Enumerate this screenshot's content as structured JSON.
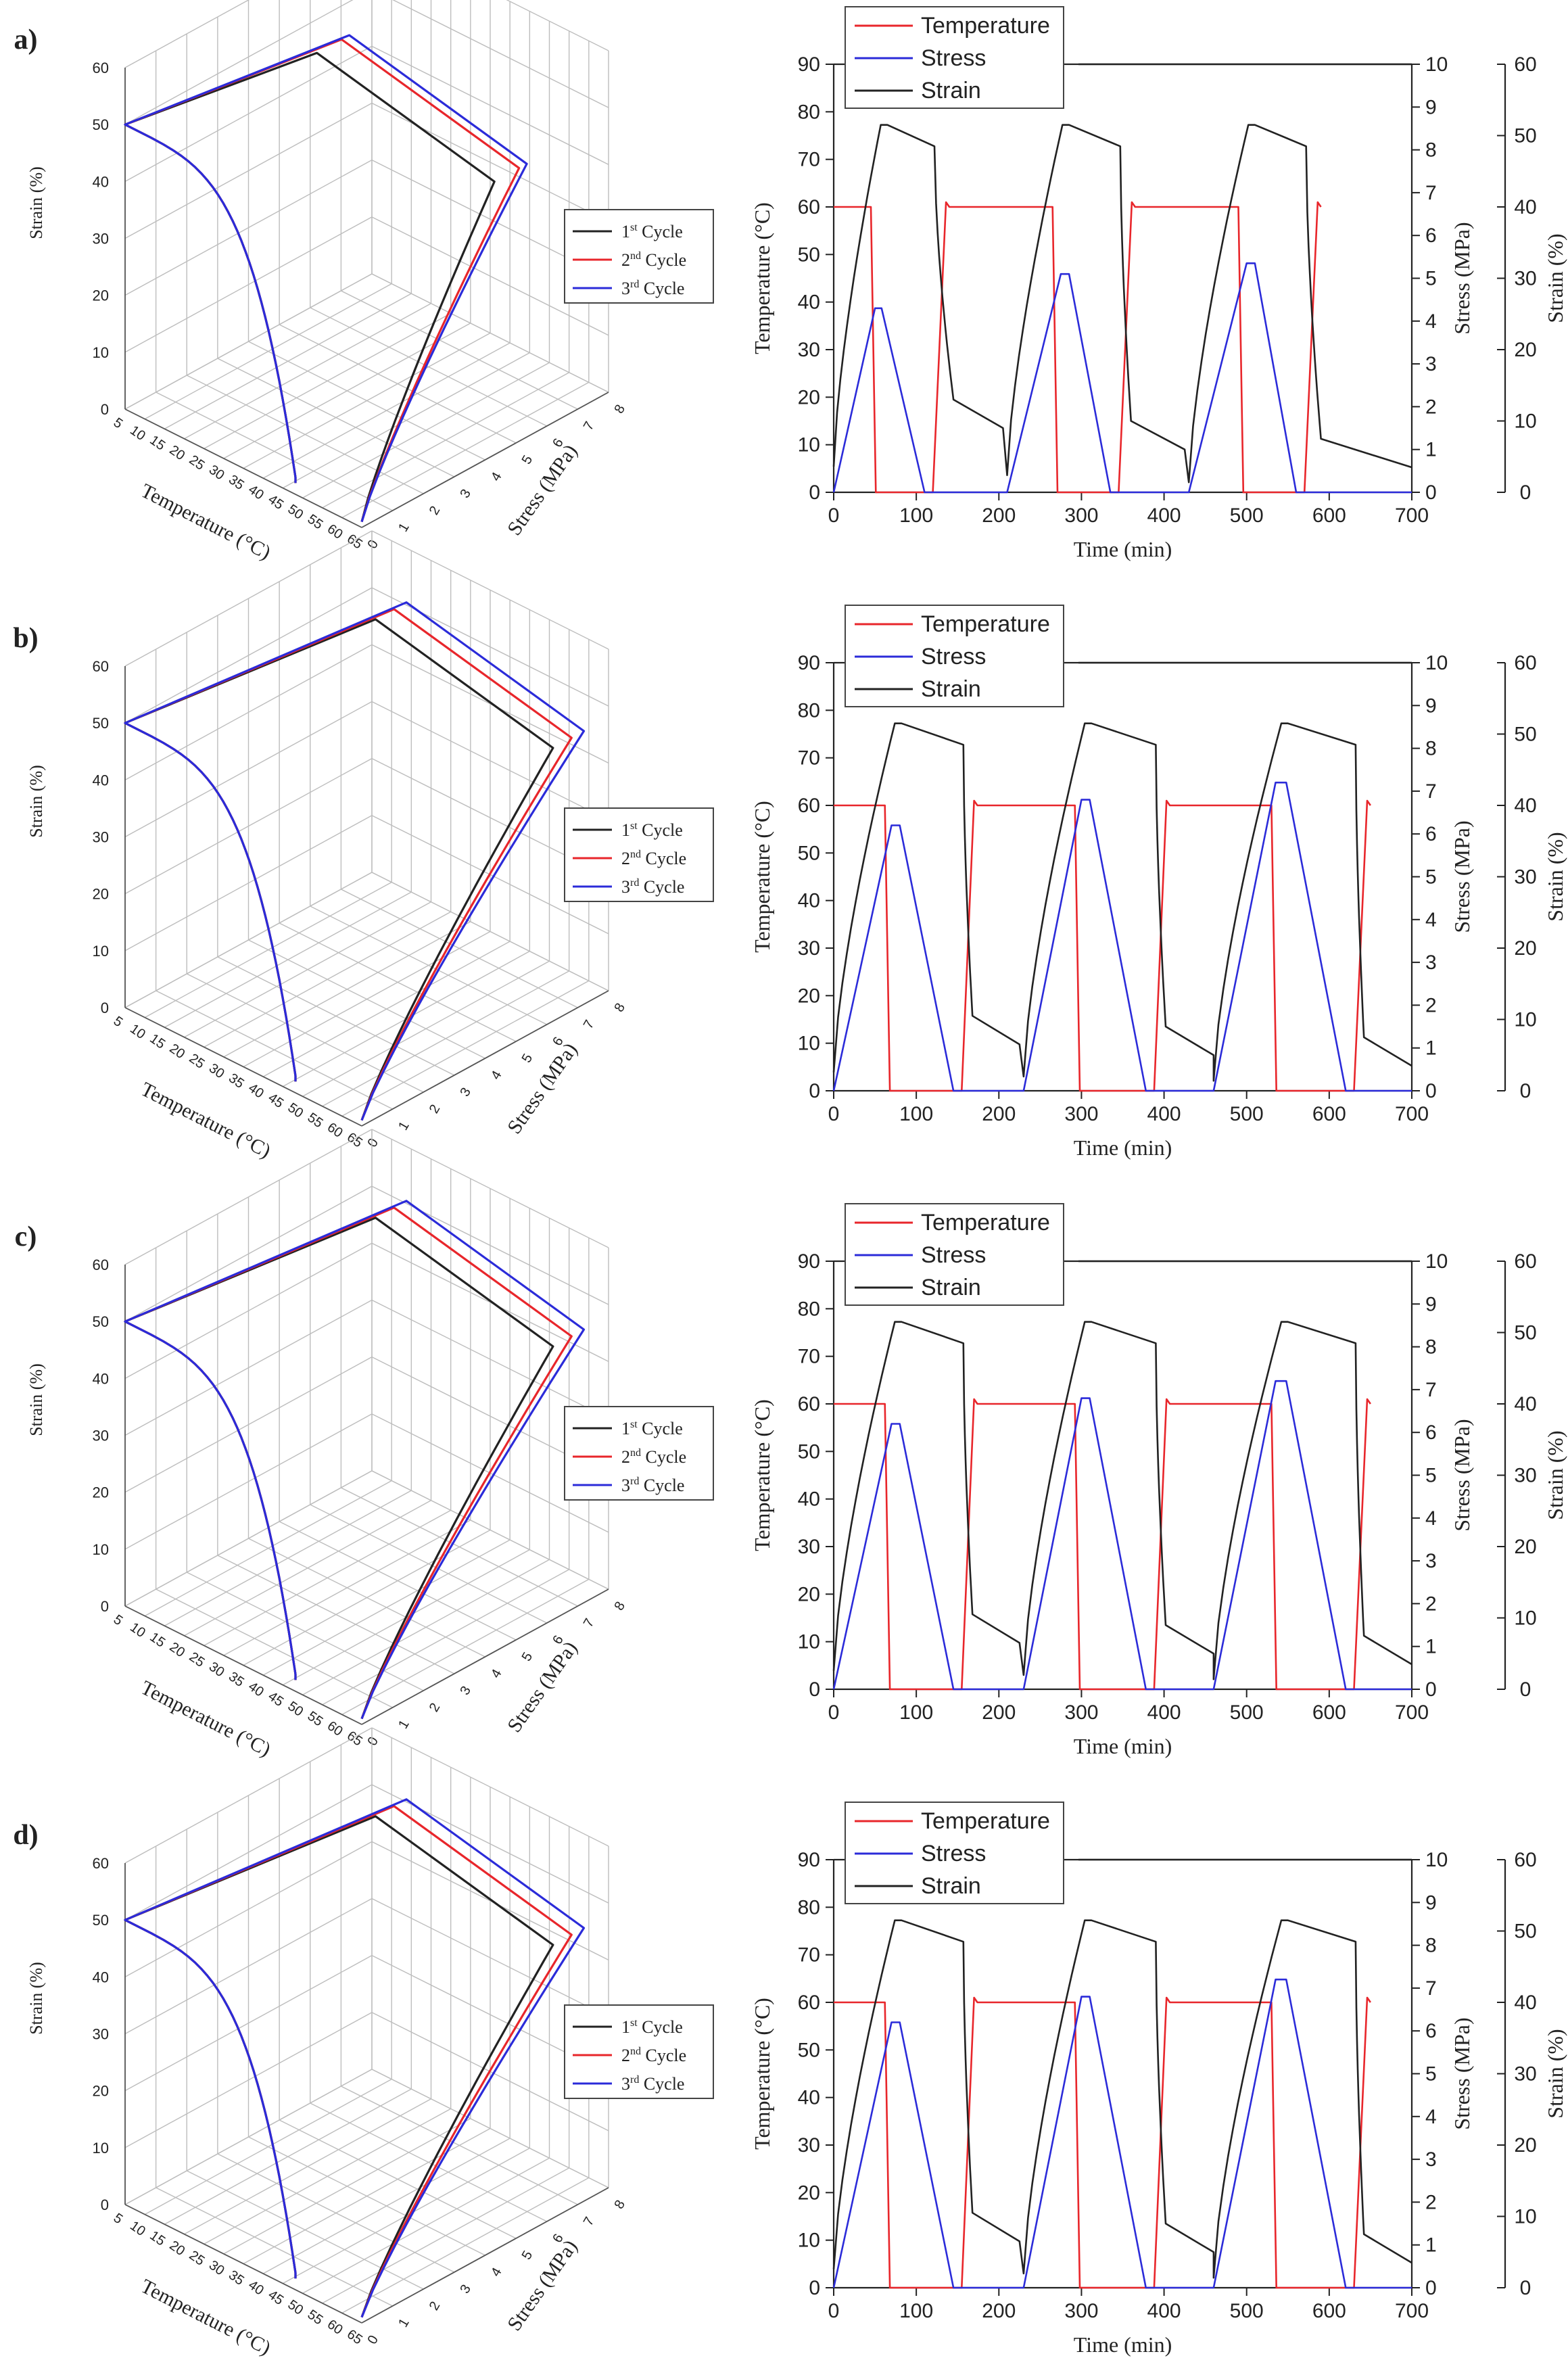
{
  "chart_data": [
    {
      "panel": "a)",
      "type": "line",
      "subtype": "3d",
      "xlabel": "Temperature (°C)",
      "ylabel": "Stress (MPa)",
      "zlabel": "Strain (%)",
      "x_ticks": [
        "5",
        "10",
        "15",
        "20",
        "25",
        "30",
        "35",
        "40",
        "45",
        "50",
        "55",
        "60",
        "65"
      ],
      "y_ticks": [
        "0",
        "1",
        "2",
        "3",
        "4",
        "5",
        "6",
        "7",
        "8"
      ],
      "z_ticks": [
        "0",
        "10",
        "20",
        "30",
        "40",
        "50",
        "60"
      ],
      "legend": [
        {
          "name": "1",
          "sup": "st",
          "suffix": " Cycle",
          "color": "#222222"
        },
        {
          "name": "2",
          "sup": "nd",
          "suffix": " Cycle",
          "color": "#e8262b"
        },
        {
          "name": "3",
          "sup": "rd",
          "suffix": " Cycle",
          "color": "#2b2bd9"
        }
      ],
      "series_peak_stress": [
        4.3,
        5.1,
        5.35
      ]
    },
    {
      "panel": "a)",
      "type": "line",
      "xlabel": "Time (min)",
      "ylabel_left": "Temperature (°C)",
      "ylabel_right1": "Stress (MPa)",
      "ylabel_right2": "Strain (%)",
      "xlim": [
        0,
        700
      ],
      "ylim_left": [
        0,
        90
      ],
      "ylim_right1": [
        0,
        10
      ],
      "ylim_right2": [
        0,
        60
      ],
      "x_ticks": [
        "0",
        "100",
        "200",
        "300",
        "400",
        "500",
        "600",
        "700"
      ],
      "y_left_ticks": [
        "0",
        "10",
        "20",
        "30",
        "40",
        "50",
        "60",
        "70",
        "80",
        "90"
      ],
      "y_right1_ticks": [
        "0",
        "1",
        "2",
        "3",
        "4",
        "5",
        "6",
        "7",
        "8",
        "9",
        "10"
      ],
      "y_right2_ticks": [
        "0",
        "10",
        "20",
        "30",
        "40",
        "50",
        "60"
      ],
      "legend": [
        {
          "name": "Temperature",
          "color": "#e8262b"
        },
        {
          "name": "Stress",
          "color": "#2b2bd9"
        },
        {
          "name": "Strain",
          "color": "#222222"
        }
      ],
      "cycles": [
        {
          "t0": 0,
          "tsd": 45,
          "tpk": 50,
          "tre": 58,
          "tl": 110,
          "tc": 118,
          "tsh": 145,
          "tend": 205,
          "stress": 4.3,
          "strain_end": 9
        },
        {
          "t0": 210,
          "tsd": 265,
          "tpk": 275,
          "tre": 285,
          "tl": 335,
          "tc": 343,
          "tsh": 360,
          "tend": 425,
          "stress": 5.1,
          "strain_end": 6
        },
        {
          "t0": 430,
          "tsd": 490,
          "tpk": 500,
          "tre": 510,
          "tl": 560,
          "tc": 568,
          "tsh": 590,
          "tend": 700,
          "stress": 5.35,
          "strain_end": 3.5
        }
      ],
      "temperature_high": 60,
      "temperature_low": 0,
      "strain_peak": 51.5
    },
    {
      "panel": "b)",
      "type": "line",
      "subtype": "3d",
      "xlabel": "Temperature (°C)",
      "ylabel": "Stress (MPa)",
      "zlabel": "Strain (%)",
      "x_ticks": [
        "5",
        "10",
        "15",
        "20",
        "25",
        "30",
        "35",
        "40",
        "45",
        "50",
        "55",
        "60",
        "65"
      ],
      "y_ticks": [
        "0",
        "1",
        "2",
        "3",
        "4",
        "5",
        "6",
        "7",
        "8"
      ],
      "z_ticks": [
        "0",
        "10",
        "20",
        "30",
        "40",
        "50",
        "60"
      ],
      "legend": [
        {
          "name": "1",
          "sup": "st",
          "suffix": " Cycle",
          "color": "#222222"
        },
        {
          "name": "2",
          "sup": "nd",
          "suffix": " Cycle",
          "color": "#e8262b"
        },
        {
          "name": "3",
          "sup": "rd",
          "suffix": " Cycle",
          "color": "#2b2bd9"
        }
      ],
      "series_peak_stress": [
        6.2,
        6.8,
        7.2
      ]
    },
    {
      "panel": "b)",
      "type": "line",
      "xlabel": "Time (min)",
      "ylabel_left": "Temperature (°C)",
      "ylabel_right1": "Stress (MPa)",
      "ylabel_right2": "Strain (%)",
      "xlim": [
        0,
        700
      ],
      "ylim_left": [
        0,
        90
      ],
      "ylim_right1": [
        0,
        10
      ],
      "ylim_right2": [
        0,
        60
      ],
      "x_ticks": [
        "0",
        "100",
        "200",
        "300",
        "400",
        "500",
        "600",
        "700"
      ],
      "y_left_ticks": [
        "0",
        "10",
        "20",
        "30",
        "40",
        "50",
        "60",
        "70",
        "80",
        "90"
      ],
      "y_right1_ticks": [
        "0",
        "1",
        "2",
        "3",
        "4",
        "5",
        "6",
        "7",
        "8",
        "9",
        "10"
      ],
      "y_right2_ticks": [
        "0",
        "10",
        "20",
        "30",
        "40",
        "50",
        "60"
      ],
      "legend": [
        {
          "name": "Temperature",
          "color": "#e8262b"
        },
        {
          "name": "Stress",
          "color": "#2b2bd9"
        },
        {
          "name": "Strain",
          "color": "#222222"
        }
      ],
      "cycles": [
        {
          "t0": 0,
          "tsd": 62,
          "tpk": 70,
          "tre": 80,
          "tl": 145,
          "tc": 152,
          "tsh": 168,
          "tend": 225,
          "stress": 6.2,
          "strain_end": 6.5
        },
        {
          "t0": 230,
          "tsd": 292,
          "tpk": 300,
          "tre": 310,
          "tl": 378,
          "tc": 385,
          "tsh": 402,
          "tend": 460,
          "stress": 6.8,
          "strain_end": 5
        },
        {
          "t0": 460,
          "tsd": 530,
          "tpk": 535,
          "tre": 548,
          "tl": 620,
          "tc": 628,
          "tsh": 642,
          "tend": 700,
          "stress": 7.2,
          "strain_end": 3.5
        }
      ],
      "temperature_high": 60,
      "temperature_low": 0,
      "strain_peak": 51.5
    },
    {
      "panel": "c)",
      "type": "line",
      "subtype": "3d",
      "xlabel": "Temperature (°C)",
      "ylabel": "Stress (MPa)",
      "zlabel": "Strain (%)",
      "x_ticks": [
        "5",
        "10",
        "15",
        "20",
        "25",
        "30",
        "35",
        "40",
        "45",
        "50",
        "55",
        "60",
        "65"
      ],
      "y_ticks": [
        "0",
        "1",
        "2",
        "3",
        "4",
        "5",
        "6",
        "7",
        "8"
      ],
      "z_ticks": [
        "0",
        "10",
        "20",
        "30",
        "40",
        "50",
        "60"
      ],
      "legend": [
        {
          "name": "1",
          "sup": "st",
          "suffix": " Cycle",
          "color": "#222222"
        },
        {
          "name": "2",
          "sup": "nd",
          "suffix": " Cycle",
          "color": "#e8262b"
        },
        {
          "name": "3",
          "sup": "rd",
          "suffix": " Cycle",
          "color": "#2b2bd9"
        }
      ],
      "series_peak_stress": [
        6.2,
        6.8,
        7.2
      ]
    },
    {
      "panel": "c)",
      "type": "line",
      "xlabel": "Time (min)",
      "ylabel_left": "Temperature (°C)",
      "ylabel_right1": "Stress (MPa)",
      "ylabel_right2": "Strain (%)",
      "xlim": [
        0,
        700
      ],
      "ylim_left": [
        0,
        90
      ],
      "ylim_right1": [
        0,
        10
      ],
      "ylim_right2": [
        0,
        60
      ],
      "x_ticks": [
        "0",
        "100",
        "200",
        "300",
        "400",
        "500",
        "600",
        "700"
      ],
      "y_left_ticks": [
        "0",
        "10",
        "20",
        "30",
        "40",
        "50",
        "60",
        "70",
        "80",
        "90"
      ],
      "y_right1_ticks": [
        "0",
        "1",
        "2",
        "3",
        "4",
        "5",
        "6",
        "7",
        "8",
        "9",
        "10"
      ],
      "y_right2_ticks": [
        "0",
        "10",
        "20",
        "30",
        "40",
        "50",
        "60"
      ],
      "legend": [
        {
          "name": "Temperature",
          "color": "#e8262b"
        },
        {
          "name": "Stress",
          "color": "#2b2bd9"
        },
        {
          "name": "Strain",
          "color": "#222222"
        }
      ],
      "cycles": [
        {
          "t0": 0,
          "tsd": 62,
          "tpk": 70,
          "tre": 80,
          "tl": 145,
          "tc": 152,
          "tsh": 168,
          "tend": 225,
          "stress": 6.2,
          "strain_end": 6.5
        },
        {
          "t0": 230,
          "tsd": 292,
          "tpk": 300,
          "tre": 310,
          "tl": 378,
          "tc": 385,
          "tsh": 402,
          "tend": 460,
          "stress": 6.8,
          "strain_end": 5
        },
        {
          "t0": 460,
          "tsd": 530,
          "tpk": 535,
          "tre": 548,
          "tl": 620,
          "tc": 628,
          "tsh": 642,
          "tend": 700,
          "stress": 7.2,
          "strain_end": 3.5
        }
      ],
      "temperature_high": 60,
      "temperature_low": 0,
      "strain_peak": 51.5
    },
    {
      "panel": "d)",
      "type": "line",
      "subtype": "3d",
      "xlabel": "Temperature (°C)",
      "ylabel": "Stress (MPa)",
      "zlabel": "Strain (%)",
      "x_ticks": [
        "5",
        "10",
        "15",
        "20",
        "25",
        "30",
        "35",
        "40",
        "45",
        "50",
        "55",
        "60",
        "65"
      ],
      "y_ticks": [
        "0",
        "1",
        "2",
        "3",
        "4",
        "5",
        "6",
        "7",
        "8"
      ],
      "z_ticks": [
        "0",
        "10",
        "20",
        "30",
        "40",
        "50",
        "60"
      ],
      "legend": [
        {
          "name": "1",
          "sup": "st",
          "suffix": " Cycle",
          "color": "#222222"
        },
        {
          "name": "2",
          "sup": "nd",
          "suffix": " Cycle",
          "color": "#e8262b"
        },
        {
          "name": "3",
          "sup": "rd",
          "suffix": " Cycle",
          "color": "#2b2bd9"
        }
      ],
      "series_peak_stress": [
        6.2,
        6.8,
        7.2
      ]
    },
    {
      "panel": "d)",
      "type": "line",
      "xlabel": "Time (min)",
      "ylabel_left": "Temperature (°C)",
      "ylabel_right1": "Stress (MPa)",
      "ylabel_right2": "Strain (%)",
      "xlim": [
        0,
        700
      ],
      "ylim_left": [
        0,
        90
      ],
      "ylim_right1": [
        0,
        10
      ],
      "ylim_right2": [
        0,
        60
      ],
      "x_ticks": [
        "0",
        "100",
        "200",
        "300",
        "400",
        "500",
        "600",
        "700"
      ],
      "y_left_ticks": [
        "0",
        "10",
        "20",
        "30",
        "40",
        "50",
        "60",
        "70",
        "80",
        "90"
      ],
      "y_right1_ticks": [
        "0",
        "1",
        "2",
        "3",
        "4",
        "5",
        "6",
        "7",
        "8",
        "9",
        "10"
      ],
      "y_right2_ticks": [
        "0",
        "10",
        "20",
        "30",
        "40",
        "50",
        "60"
      ],
      "legend": [
        {
          "name": "Temperature",
          "color": "#e8262b"
        },
        {
          "name": "Stress",
          "color": "#2b2bd9"
        },
        {
          "name": "Strain",
          "color": "#222222"
        }
      ],
      "cycles": [
        {
          "t0": 0,
          "tsd": 62,
          "tpk": 70,
          "tre": 80,
          "tl": 145,
          "tc": 152,
          "tsh": 168,
          "tend": 225,
          "stress": 6.2,
          "strain_end": 6.5
        },
        {
          "t0": 230,
          "tsd": 292,
          "tpk": 300,
          "tre": 310,
          "tl": 378,
          "tc": 385,
          "tsh": 402,
          "tend": 460,
          "stress": 6.8,
          "strain_end": 5
        },
        {
          "t0": 460,
          "tsd": 530,
          "tpk": 535,
          "tre": 548,
          "tl": 620,
          "tc": 628,
          "tsh": 642,
          "tend": 700,
          "stress": 7.2,
          "strain_end": 3.5
        }
      ],
      "temperature_high": 60,
      "temperature_low": 0,
      "strain_peak": 51.5
    }
  ]
}
